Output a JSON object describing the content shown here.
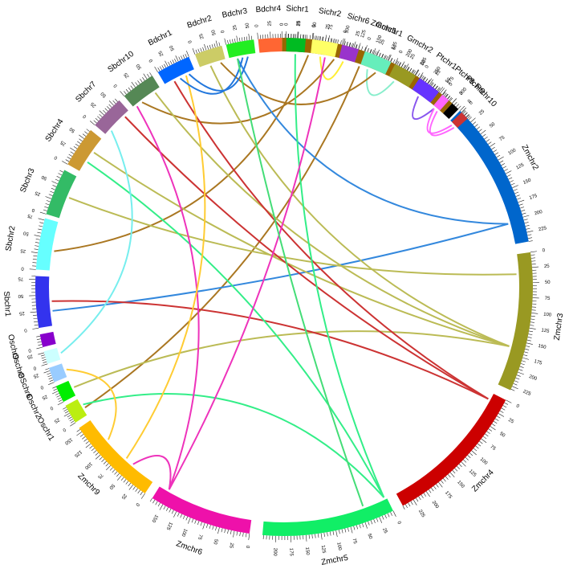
{
  "diagram": {
    "type": "circos",
    "chromosomes": [
      {
        "name": "Zmchr1",
        "color": "#996600",
        "length": 300,
        "ticks": [
          0,
          25,
          50,
          75,
          100,
          125,
          150,
          175,
          200,
          225,
          250,
          275,
          300
        ]
      },
      {
        "name": "Zmchr2",
        "color": "#0066cc",
        "length": 240,
        "ticks": [
          0,
          25,
          50,
          75,
          100,
          125,
          150,
          175,
          200,
          225
        ]
      },
      {
        "name": "Zmchr3",
        "color": "#999922",
        "length": 232,
        "ticks": [
          0,
          25,
          50,
          75,
          100,
          125,
          150,
          175,
          200,
          225
        ]
      },
      {
        "name": "Zmchr4",
        "color": "#cc0000",
        "length": 245,
        "ticks": [
          0,
          25,
          50,
          75,
          100,
          125,
          150,
          175,
          200,
          225
        ]
      },
      {
        "name": "Zmchr5",
        "color": "#11ee66",
        "length": 222,
        "ticks": [
          0,
          25,
          50,
          75,
          100,
          125,
          150,
          175,
          200
        ]
      },
      {
        "name": "Zmchr6",
        "color": "#ee11aa",
        "length": 170,
        "ticks": [
          0,
          25,
          50,
          75,
          100,
          125,
          150
        ]
      },
      {
        "name": "Zmchr9",
        "color": "#ffbb00",
        "length": 158,
        "ticks": [
          0,
          25,
          50,
          75,
          100,
          125,
          150
        ]
      },
      {
        "name": "Oschr1",
        "color": "#bbee11",
        "length": 44,
        "ticks": [
          0,
          25
        ]
      },
      {
        "name": "Oschr2",
        "color": "#00ee00",
        "length": 36,
        "ticks": [
          0,
          25
        ]
      },
      {
        "name": "OSchr6",
        "color": "#99ccff",
        "length": 31,
        "ticks": [
          0,
          25
        ]
      },
      {
        "name": "Oschr8",
        "color": "#ccffff",
        "length": 28,
        "ticks": [
          0,
          25
        ]
      },
      {
        "name": "Oschr9",
        "color": "#8800cc",
        "length": 23,
        "ticks": [
          0
        ]
      },
      {
        "name": "Sbchr1",
        "color": "#3333ee",
        "length": 80,
        "ticks": [
          0,
          25,
          50,
          75
        ]
      },
      {
        "name": "Sbchr2",
        "color": "#66ffff",
        "length": 78,
        "ticks": [
          0,
          25,
          50,
          75
        ]
      },
      {
        "name": "Sbchr3",
        "color": "#33bb66",
        "length": 74,
        "ticks": [
          0,
          25,
          50
        ]
      },
      {
        "name": "Sbchr4",
        "color": "#cc9933",
        "length": 68,
        "ticks": [
          0,
          25,
          50
        ]
      },
      {
        "name": "Sbchr7",
        "color": "#996699",
        "length": 64,
        "ticks": [
          0,
          25,
          50
        ]
      },
      {
        "name": "Sbchr10",
        "color": "#558855",
        "length": 61,
        "ticks": [
          0,
          25,
          50
        ]
      },
      {
        "name": "Bdchr1",
        "color": "#0066ff",
        "length": 75,
        "ticks": [
          0,
          25,
          50
        ]
      },
      {
        "name": "Bdchr2",
        "color": "#cccc66",
        "length": 59,
        "ticks": [
          0,
          25,
          50
        ]
      },
      {
        "name": "Bdchr3",
        "color": "#22ee22",
        "length": 59,
        "ticks": [
          0,
          25,
          50
        ]
      },
      {
        "name": "Bdchr4",
        "color": "#ff6633",
        "length": 48,
        "ticks": [
          0,
          25
        ]
      },
      {
        "name": "Sichr1",
        "color": "#00bb22",
        "length": 41,
        "ticks": [
          0,
          25
        ]
      },
      {
        "name": "Sichr2",
        "color": "#ffff66",
        "length": 49,
        "ticks": [
          0,
          25
        ]
      },
      {
        "name": "Sichr6",
        "color": "#9933cc",
        "length": 36,
        "ticks": [
          0,
          25
        ]
      },
      {
        "name": "Gmchr1",
        "color": "#66eebb",
        "length": 56,
        "ticks": [
          0,
          25,
          50
        ]
      },
      {
        "name": "Gmchr2",
        "color": "#999922",
        "length": 51,
        "ticks": [
          0,
          25,
          50
        ]
      },
      {
        "name": "Ptchr1",
        "color": "#6633ff",
        "length": 50,
        "ticks": [
          0,
          25,
          50
        ]
      },
      {
        "name": "Ptchr8",
        "color": "#ff66ff",
        "length": 20,
        "ticks": [
          0
        ]
      },
      {
        "name": "Ptchr9",
        "color": "#000000",
        "length": 16,
        "ticks": [
          0
        ]
      },
      {
        "name": "Ptchr10",
        "color": "#cc3333",
        "length": 20,
        "ticks": [
          0
        ]
      }
    ],
    "links": [
      {
        "from": "Ptchr1",
        "from_pos": 0.4,
        "to": "Ptchr8",
        "to_pos": 0.3,
        "color": "#8855ee"
      },
      {
        "from": "Ptchr8",
        "from_pos": 0.3,
        "to": "Ptchr10",
        "to_pos": 0.3,
        "color": "#ff66ff"
      },
      {
        "from": "Ptchr8",
        "from_pos": 0.8,
        "to": "Ptchr10",
        "to_pos": 0.7,
        "color": "#ff66ff"
      },
      {
        "from": "Gmchr1",
        "from_pos": 0.3,
        "to": "Gmchr2",
        "to_pos": 0.3,
        "color": "#88eecc"
      },
      {
        "from": "Sichr2",
        "from_pos": 0.4,
        "to": "Sichr6",
        "to_pos": 0.3,
        "color": "#ffee33"
      },
      {
        "from": "Zmchr1",
        "from_pos": 0.15,
        "to": "Sbchr2",
        "to_pos": 0.4,
        "color": "#aa7722"
      },
      {
        "from": "Zmchr1",
        "from_pos": 0.3,
        "to": "Sbchr10",
        "to_pos": 0.3,
        "color": "#aa7722"
      },
      {
        "from": "Zmchr1",
        "from_pos": 0.45,
        "to": "Oschr1",
        "to_pos": 0.4,
        "color": "#aa7722"
      },
      {
        "from": "Zmchr1",
        "from_pos": 0.55,
        "to": "Bdchr2",
        "to_pos": 0.8,
        "color": "#aa7722"
      },
      {
        "from": "Zmchr2",
        "from_pos": 0.85,
        "to": "Bdchr3",
        "to_pos": 0.3,
        "color": "#3388dd"
      },
      {
        "from": "Zmchr2",
        "from_pos": 0.85,
        "to": "Sbchr1",
        "to_pos": 0.3,
        "color": "#3388dd"
      },
      {
        "from": "Zmchr3",
        "from_pos": 0.15,
        "to": "Sbchr3",
        "to_pos": 0.5,
        "color": "#bbbb55"
      },
      {
        "from": "Zmchr3",
        "from_pos": 0.7,
        "to": "Bdchr2",
        "to_pos": 0.4,
        "color": "#bbbb55"
      },
      {
        "from": "Zmchr3",
        "from_pos": 0.7,
        "to": "Sbchr10",
        "to_pos": 0.8,
        "color": "#bbbb55"
      },
      {
        "from": "Zmchr3",
        "from_pos": 0.7,
        "to": "Sbchr4",
        "to_pos": 0.6,
        "color": "#bbbb55"
      },
      {
        "from": "Zmchr3",
        "from_pos": 0.7,
        "to": "Oschr2",
        "to_pos": 0.5,
        "color": "#bbbb55"
      },
      {
        "from": "Zmchr4",
        "from_pos": 0.05,
        "to": "Bdchr1",
        "to_pos": 0.3,
        "color": "#cc3333"
      },
      {
        "from": "Zmchr4",
        "from_pos": 0.05,
        "to": "Sbchr7",
        "to_pos": 0.8,
        "color": "#cc3333"
      },
      {
        "from": "Zmchr4",
        "from_pos": 0.05,
        "to": "Sbchr1",
        "to_pos": 0.5,
        "color": "#cc3333"
      },
      {
        "from": "Zmchr5",
        "from_pos": 0.02,
        "to": "Sichr1",
        "to_pos": 0.5,
        "color": "#33ee88"
      },
      {
        "from": "Zmchr5",
        "from_pos": 0.02,
        "to": "Sbchr4",
        "to_pos": 0.3,
        "color": "#33ee88"
      },
      {
        "from": "Zmchr5",
        "from_pos": 0.02,
        "to": "Oschr1",
        "to_pos": 0.6,
        "color": "#33ee88"
      },
      {
        "from": "Zmchr6",
        "from_pos": 0.9,
        "to": "Sichr2",
        "to_pos": 0.6,
        "color": "#ee33bb"
      },
      {
        "from": "Zmchr6",
        "from_pos": 0.9,
        "to": "Sbchr10",
        "to_pos": 0.1,
        "color": "#ee33bb"
      },
      {
        "from": "Zmchr6",
        "from_pos": 0.9,
        "to": "Zmchr9",
        "to_pos": 0.3,
        "color": "#ee33bb"
      },
      {
        "from": "Zmchr9",
        "from_pos": 0.4,
        "to": "Bdchr1",
        "to_pos": 0.7,
        "color": "#ffcc33"
      },
      {
        "from": "Zmchr9",
        "from_pos": 0.7,
        "to": "OSchr6",
        "to_pos": 0.5,
        "color": "#ffcc33"
      },
      {
        "from": "Sbchr7",
        "from_pos": 0.2,
        "to": "Oschr8",
        "to_pos": 0.5,
        "color": "#77eeee"
      },
      {
        "from": "Bdchr3",
        "from_pos": 0.5,
        "to": "Bdchr1",
        "to_pos": 0.5,
        "color": "#2277dd"
      },
      {
        "from": "Bdchr3",
        "from_pos": 0.7,
        "to": "Bdchr1",
        "to_pos": 0.8,
        "color": "#2277dd"
      },
      {
        "from": "Bdchr3",
        "from_pos": 0.3,
        "to": "Zmchr5",
        "to_pos": 0.2,
        "color": "#44dd77"
      }
    ]
  }
}
